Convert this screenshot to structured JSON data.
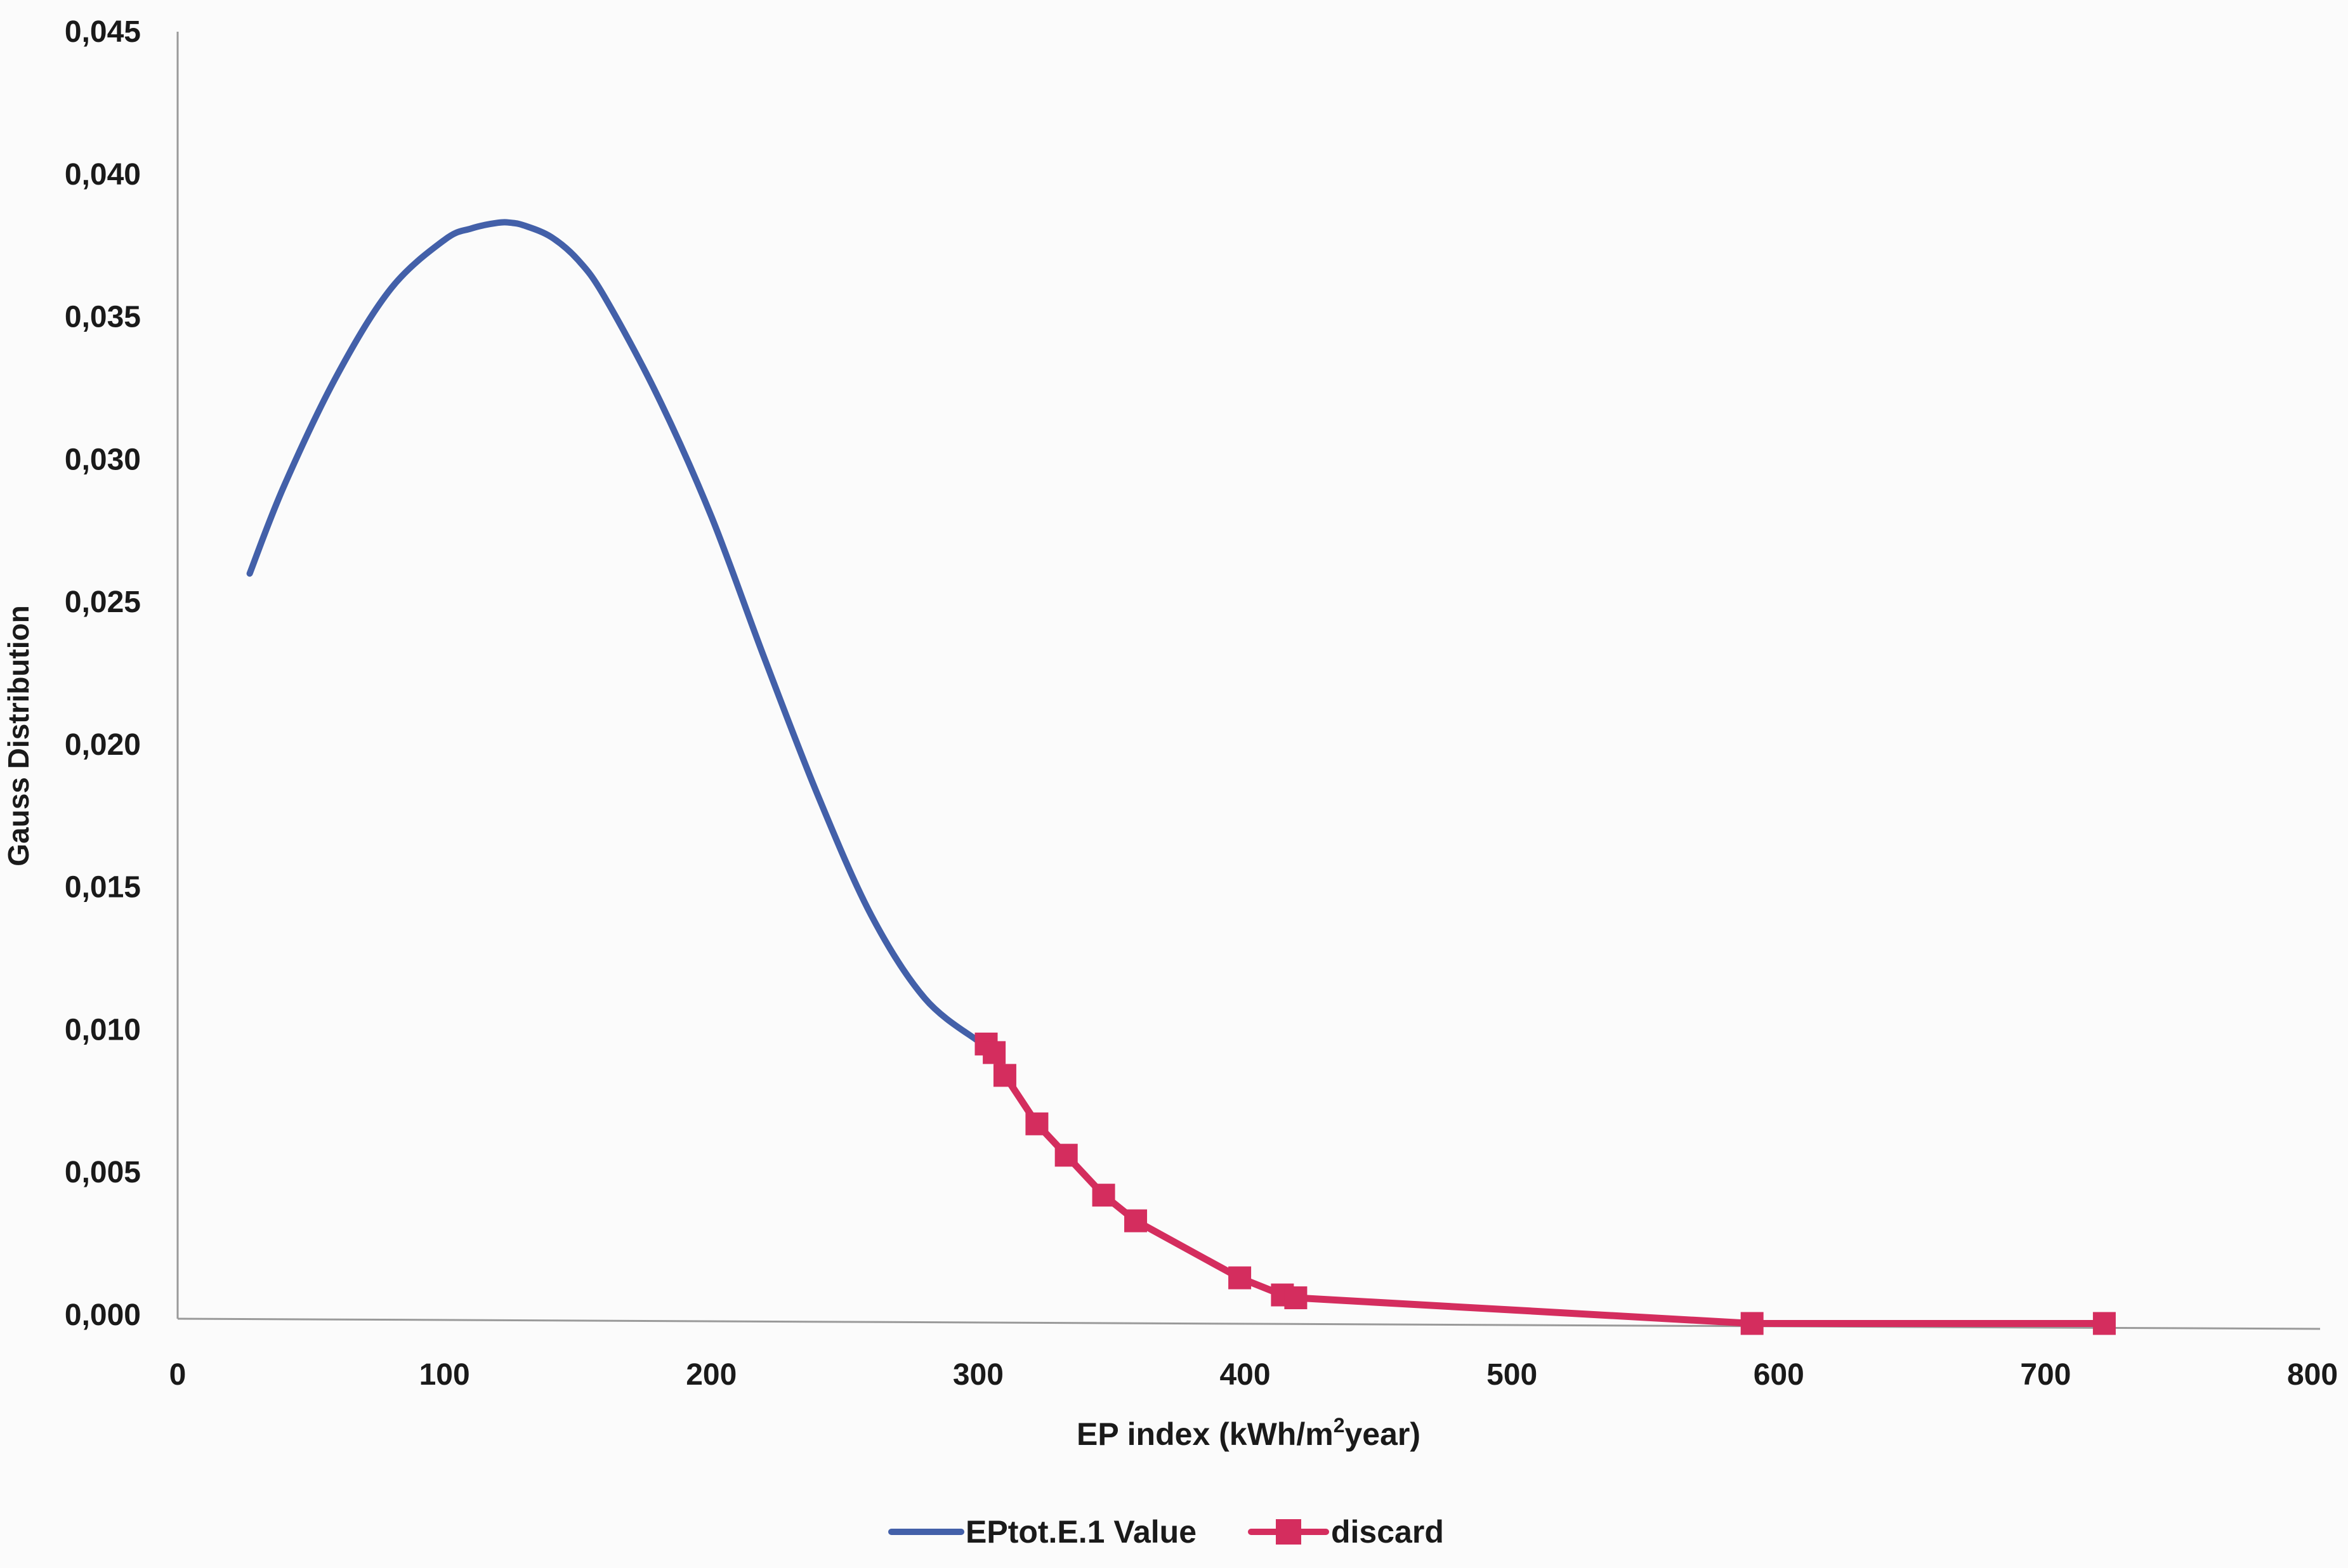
{
  "chart_data": {
    "type": "line",
    "title": "",
    "xlabel": "EP index (kWh/m²year)",
    "xlabel_parts": {
      "before": "EP index (kWh/m",
      "sup": "2",
      "after": "year)"
    },
    "ylabel": "Gauss Distribution",
    "xlim": [
      0,
      800
    ],
    "ylim": [
      0,
      0.045
    ],
    "x_ticks": [
      0,
      100,
      200,
      300,
      400,
      500,
      600,
      700,
      800
    ],
    "x_tick_labels": [
      "0",
      "100",
      "200",
      "300",
      "400",
      "500",
      "600",
      "700",
      "800"
    ],
    "y_ticks": [
      0,
      0.005,
      0.01,
      0.015,
      0.02,
      0.025,
      0.03,
      0.035,
      0.04,
      0.045
    ],
    "y_tick_labels": [
      "0,000",
      "0,005",
      "0,010",
      "0,015",
      "0,020",
      "0,025",
      "0,030",
      "0,035",
      "0,040",
      "0,045"
    ],
    "grid": false,
    "legend_position": "bottom-center",
    "series": [
      {
        "name": "EPtot.E.1 Value",
        "color": "#4360a9",
        "marker": "none",
        "x": [
          27,
          40,
          60,
          80,
          100,
          110,
          120,
          125,
          130,
          140,
          150,
          160,
          180,
          200,
          220,
          240,
          260,
          280,
          300
        ],
        "y": [
          0.026,
          0.0291,
          0.033,
          0.036,
          0.0377,
          0.0381,
          0.0383,
          0.0383,
          0.0382,
          0.0378,
          0.037,
          0.0357,
          0.0322,
          0.028,
          0.023,
          0.0182,
          0.014,
          0.0111,
          0.0096
        ]
      },
      {
        "name": "discard",
        "color": "#d42d5e",
        "marker": "square",
        "x": [
          303,
          306,
          310,
          322,
          333,
          347,
          359,
          398,
          414,
          419,
          590,
          722
        ],
        "y": [
          0.0095,
          0.0092,
          0.0084,
          0.0067,
          0.0056,
          0.0042,
          0.0033,
          0.0013,
          0.0007,
          0.0006,
          -0.0003,
          -0.0003
        ]
      }
    ]
  }
}
